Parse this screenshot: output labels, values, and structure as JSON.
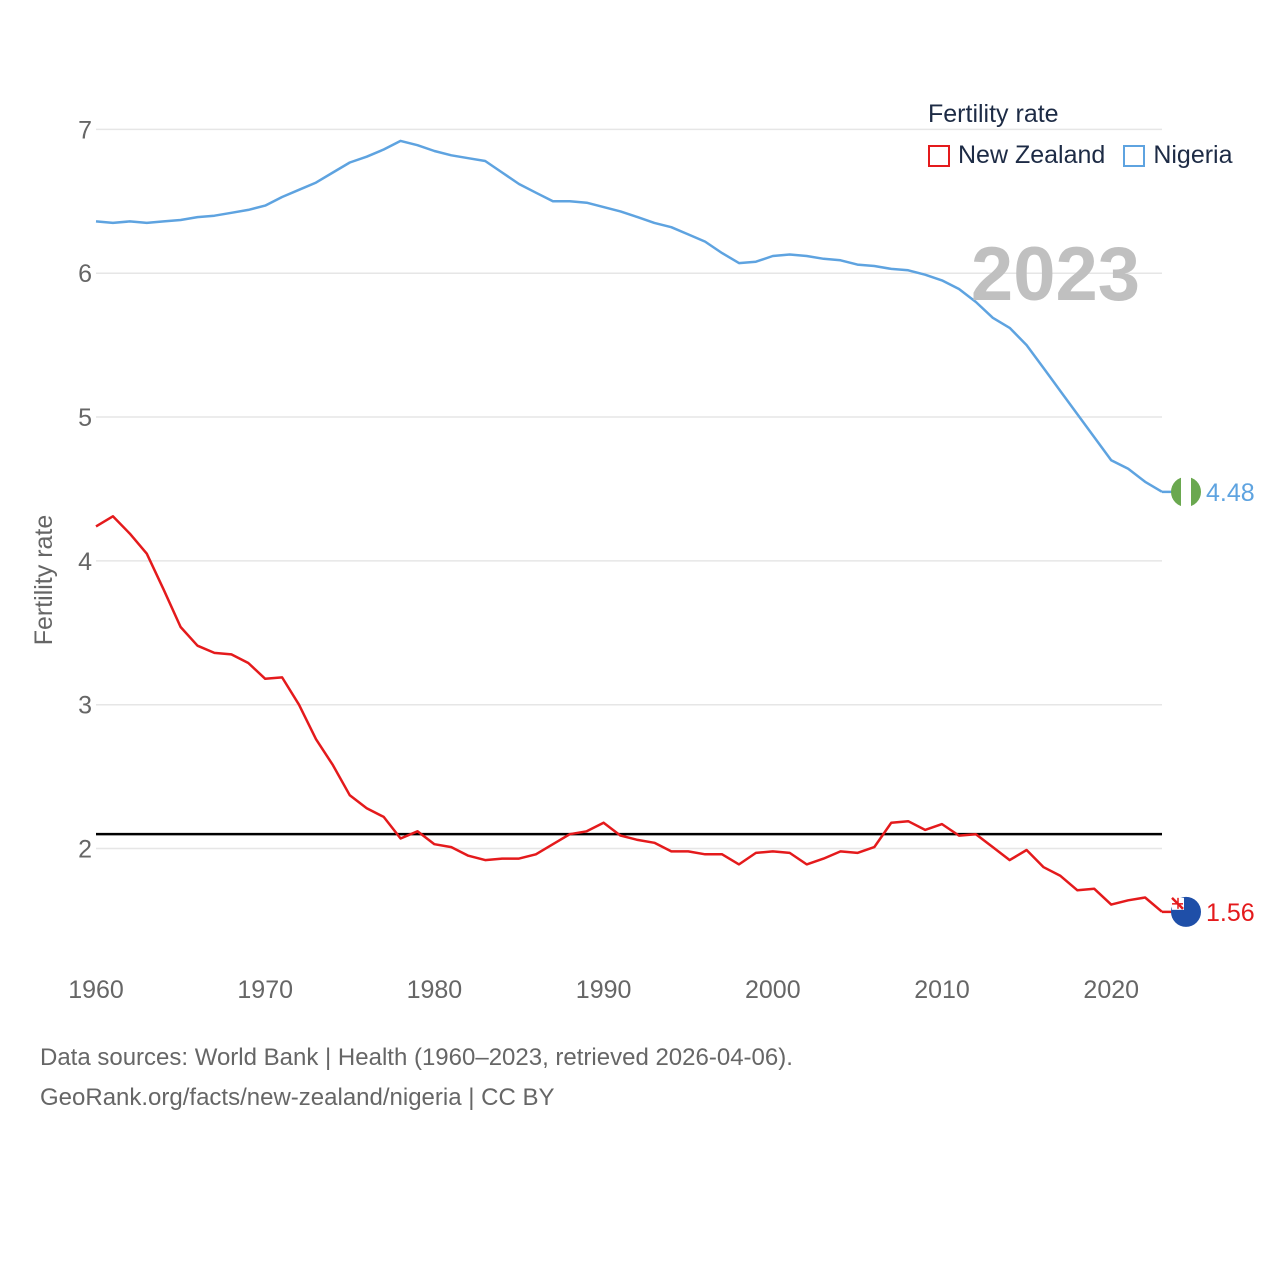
{
  "legend": {
    "title": "Fertility rate",
    "items": [
      {
        "name": "New Zealand",
        "color": "#e41a1c"
      },
      {
        "name": "Nigeria",
        "color": "#5ea3e0"
      }
    ]
  },
  "source": {
    "line1": "Data sources: World Bank | Health (1960–2023, retrieved 2026-04-06).",
    "line2": "GeoRank.org/facts/new-zealand/nigeria | CC BY"
  },
  "chart_data": {
    "type": "line",
    "title": "Fertility rate",
    "year_label": "2023",
    "xlabel": "",
    "ylabel": "Fertility rate",
    "xlim": [
      1960,
      2023
    ],
    "ylim": [
      1.1,
      7.1
    ],
    "x_ticks": [
      1960,
      1970,
      1980,
      1990,
      2000,
      2010,
      2020
    ],
    "y_ticks": [
      2,
      3,
      4,
      5,
      6,
      7
    ],
    "grid": true,
    "reference_line": {
      "y": 2.1,
      "color": "#000000"
    },
    "x": [
      1960,
      1961,
      1962,
      1963,
      1964,
      1965,
      1966,
      1967,
      1968,
      1969,
      1970,
      1971,
      1972,
      1973,
      1974,
      1975,
      1976,
      1977,
      1978,
      1979,
      1980,
      1981,
      1982,
      1983,
      1984,
      1985,
      1986,
      1987,
      1988,
      1989,
      1990,
      1991,
      1992,
      1993,
      1994,
      1995,
      1996,
      1997,
      1998,
      1999,
      2000,
      2001,
      2002,
      2003,
      2004,
      2005,
      2006,
      2007,
      2008,
      2009,
      2010,
      2011,
      2012,
      2013,
      2014,
      2015,
      2016,
      2017,
      2018,
      2019,
      2020,
      2021,
      2022,
      2023
    ],
    "series": [
      {
        "name": "New Zealand",
        "color": "#e41a1c",
        "end_label": "1.56",
        "values": [
          4.24,
          4.31,
          4.19,
          4.05,
          3.8,
          3.54,
          3.41,
          3.36,
          3.35,
          3.29,
          3.18,
          3.19,
          3.0,
          2.76,
          2.58,
          2.37,
          2.28,
          2.22,
          2.07,
          2.12,
          2.03,
          2.01,
          1.95,
          1.92,
          1.93,
          1.93,
          1.96,
          2.03,
          2.1,
          2.12,
          2.18,
          2.09,
          2.06,
          2.04,
          1.98,
          1.98,
          1.96,
          1.96,
          1.89,
          1.97,
          1.98,
          1.97,
          1.89,
          1.93,
          1.98,
          1.97,
          2.01,
          2.18,
          2.19,
          2.13,
          2.17,
          2.09,
          2.1,
          2.01,
          1.92,
          1.99,
          1.87,
          1.81,
          1.71,
          1.72,
          1.61,
          1.64,
          1.66,
          1.56
        ]
      },
      {
        "name": "Nigeria",
        "color": "#5ea3e0",
        "end_label": "4.48",
        "values": [
          6.36,
          6.35,
          6.36,
          6.35,
          6.36,
          6.37,
          6.39,
          6.4,
          6.42,
          6.44,
          6.47,
          6.53,
          6.58,
          6.63,
          6.7,
          6.77,
          6.81,
          6.86,
          6.92,
          6.89,
          6.85,
          6.82,
          6.8,
          6.78,
          6.7,
          6.62,
          6.56,
          6.5,
          6.5,
          6.49,
          6.46,
          6.43,
          6.39,
          6.35,
          6.32,
          6.27,
          6.22,
          6.14,
          6.07,
          6.08,
          6.12,
          6.13,
          6.12,
          6.1,
          6.09,
          6.06,
          6.05,
          6.03,
          6.02,
          5.99,
          5.95,
          5.89,
          5.8,
          5.69,
          5.62,
          5.5,
          5.34,
          5.18,
          5.02,
          4.86,
          4.7,
          4.64,
          4.55,
          4.48
        ]
      }
    ]
  }
}
